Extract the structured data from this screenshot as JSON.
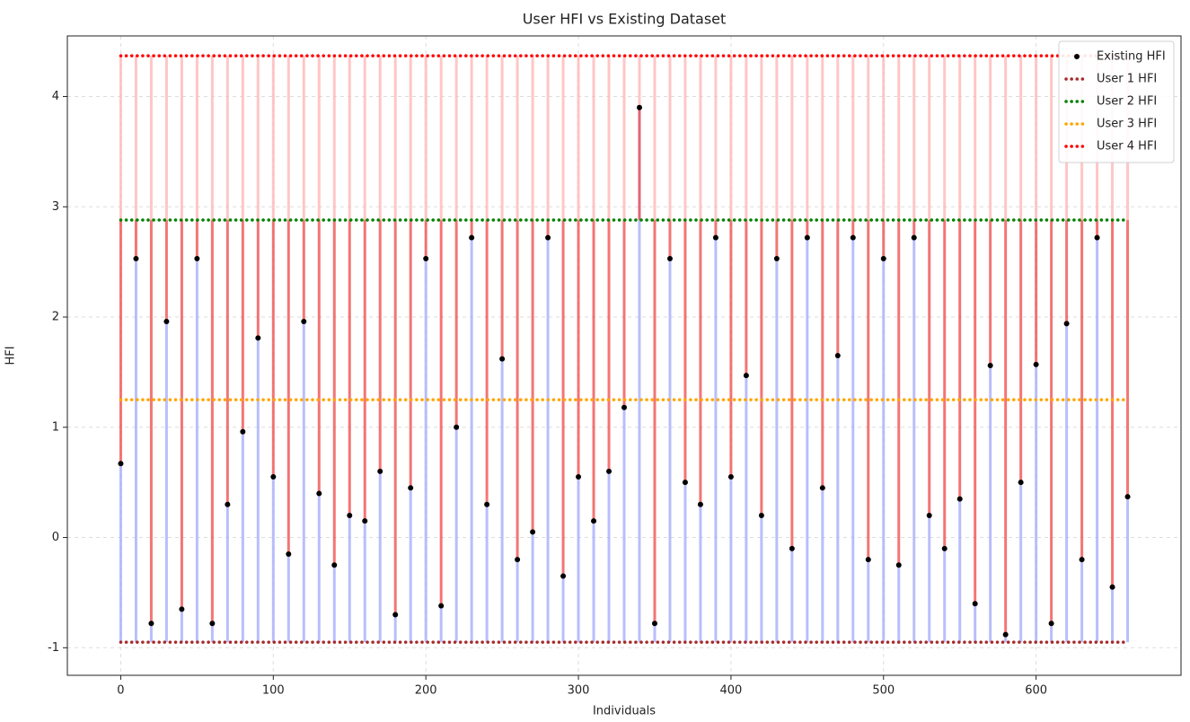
{
  "chart_data": {
    "type": "scatter",
    "title": "User HFI vs Existing Dataset",
    "x_label": "Individuals",
    "y_label": "HFI",
    "xlim": [
      -35,
      695
    ],
    "ylim": [
      -1.25,
      4.55
    ],
    "xticks": [
      0,
      100,
      200,
      300,
      400,
      500,
      600
    ],
    "yticks": [
      -1,
      0,
      1,
      2,
      3,
      4
    ],
    "grid": true,
    "legend": "upper right",
    "series": [
      {
        "name": "Existing HFI",
        "color": "black",
        "x": [
          0,
          10,
          20,
          30,
          40,
          50,
          60,
          70,
          80,
          90,
          100,
          110,
          120,
          130,
          140,
          150,
          160,
          170,
          180,
          190,
          200,
          210,
          220,
          230,
          240,
          250,
          260,
          270,
          280,
          290,
          300,
          310,
          320,
          330,
          340,
          350,
          360,
          370,
          380,
          390,
          400,
          410,
          420,
          430,
          440,
          450,
          460,
          470,
          480,
          490,
          500,
          510,
          520,
          530,
          540,
          550,
          560,
          570,
          580,
          590,
          600,
          610,
          620,
          630,
          640,
          650,
          660
        ],
        "values": [
          0.67,
          2.53,
          -0.78,
          1.96,
          -0.65,
          2.53,
          -0.78,
          0.3,
          0.96,
          1.81,
          0.55,
          -0.15,
          1.96,
          0.4,
          -0.25,
          0.2,
          0.15,
          0.6,
          -0.7,
          0.45,
          2.53,
          -0.62,
          1.0,
          2.72,
          0.3,
          1.62,
          -0.2,
          0.05,
          2.72,
          -0.35,
          0.55,
          0.15,
          0.6,
          1.18,
          3.9,
          -0.78,
          2.53,
          0.5,
          0.3,
          2.72,
          0.55,
          1.47,
          0.2,
          2.53,
          -0.1,
          2.72,
          0.45,
          1.65,
          2.72,
          -0.2,
          2.53,
          -0.25,
          2.72,
          0.2,
          -0.1,
          0.35,
          -0.6,
          1.56,
          -0.88,
          0.5,
          1.57,
          -0.78,
          1.94,
          -0.2,
          2.72,
          -0.45,
          0.37
        ]
      },
      {
        "name": "User 1 HFI",
        "color": "#a52a2a",
        "y": -0.95,
        "x": [
          0,
          660
        ]
      },
      {
        "name": "User 2 HFI",
        "color": "green",
        "y": 2.88,
        "x": [
          0,
          660
        ]
      },
      {
        "name": "User 3 HFI",
        "color": "orange",
        "y": 1.25,
        "x": [
          0,
          660
        ]
      },
      {
        "name": "User 4 HFI",
        "color": "red",
        "y": 4.37,
        "x": [
          0,
          660
        ]
      }
    ]
  }
}
